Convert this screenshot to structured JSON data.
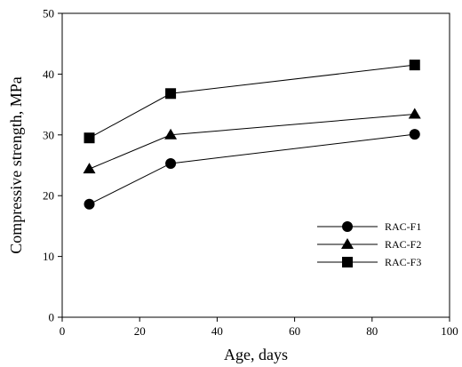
{
  "chart_data": {
    "type": "line",
    "title": "",
    "xlabel": "Age, days",
    "ylabel": "Compressive strength, MPa",
    "xlim": [
      0,
      100
    ],
    "ylim": [
      0,
      50
    ],
    "xticks": [
      "0",
      "20",
      "40",
      "60",
      "80",
      "100"
    ],
    "yticks": [
      "0",
      "10",
      "20",
      "30",
      "40",
      "50"
    ],
    "grid": false,
    "legend_position": "lower-right",
    "x": [
      7,
      28,
      91
    ],
    "series": [
      {
        "name": "RAC-F1",
        "marker": "circle",
        "color": "#000000",
        "values": [
          18.6,
          25.3,
          30.1
        ]
      },
      {
        "name": "RAC-F2",
        "marker": "triangle",
        "color": "#000000",
        "values": [
          24.4,
          30.0,
          33.4
        ]
      },
      {
        "name": "RAC-F3",
        "marker": "square",
        "color": "#000000",
        "values": [
          29.5,
          36.8,
          41.5
        ]
      }
    ]
  }
}
